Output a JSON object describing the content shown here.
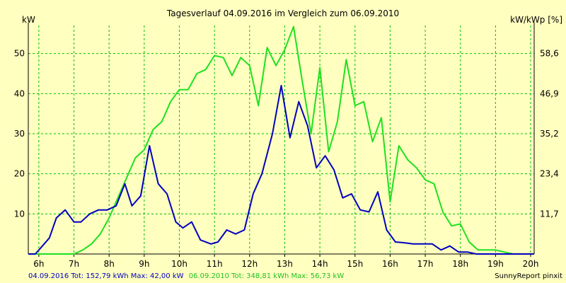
{
  "chart_data": {
    "type": "line",
    "title": "Tagesverlauf 04.09.2016 im Vergleich zum 06.09.2010",
    "ylabel_left": "kW",
    "ylabel_right": "kW/kWp [%]",
    "x_ticks": [
      "6h",
      "7h",
      "8h",
      "9h",
      "10h",
      "11h",
      "12h",
      "13h",
      "14h",
      "15h",
      "16h",
      "17h",
      "18h",
      "19h",
      "20h"
    ],
    "x_range": [
      5.7,
      20.1
    ],
    "y_ticks_left": [
      "10",
      "20",
      "30",
      "40",
      "50"
    ],
    "y_ticks_right": [
      "11,7",
      "23,4",
      "35,2",
      "46,9",
      "58,6"
    ],
    "y_range": [
      0,
      57
    ],
    "grid": true,
    "colors": {
      "background": "#ffffc0",
      "grid": "#00c000",
      "axis": "#000000",
      "series_2016": "#0000c0",
      "series_2010": "#20e020"
    },
    "series": [
      {
        "name": "04.09.2016",
        "x": [
          5.7,
          5.9,
          6.1,
          6.3,
          6.5,
          6.75,
          7.0,
          7.2,
          7.45,
          7.7,
          7.95,
          8.2,
          8.45,
          8.65,
          8.9,
          9.15,
          9.4,
          9.65,
          9.9,
          10.1,
          10.35,
          10.6,
          10.9,
          11.1,
          11.35,
          11.6,
          11.85,
          12.1,
          12.35,
          12.65,
          12.9,
          13.15,
          13.4,
          13.65,
          13.9,
          14.15,
          14.4,
          14.65,
          14.9,
          15.15,
          15.4,
          15.65,
          15.9,
          16.15,
          16.4,
          16.65,
          16.95,
          17.2,
          17.45,
          17.7,
          17.95,
          18.2,
          18.45,
          18.7,
          18.95,
          19.2,
          19.45,
          19.7,
          19.95,
          20.1
        ],
        "values": [
          0,
          0,
          2,
          4,
          9,
          11,
          8,
          8,
          10,
          11,
          11,
          12,
          17.5,
          12,
          14.5,
          27,
          17.5,
          15,
          8,
          6.5,
          8,
          3.5,
          2.5,
          3,
          6,
          5,
          6,
          15,
          20,
          30,
          42,
          29,
          38,
          32,
          21.5,
          24.5,
          21,
          14,
          15,
          11,
          10.5,
          15.5,
          6,
          3,
          2.8,
          2.5,
          2.5,
          2.5,
          1,
          2,
          0.5,
          0.5,
          0,
          0,
          0,
          0,
          0,
          0,
          0,
          0
        ]
      },
      {
        "name": "06.09.2010",
        "x": [
          5.7,
          6.0,
          6.5,
          6.75,
          7.0,
          7.25,
          7.5,
          7.75,
          8.0,
          8.25,
          8.5,
          8.75,
          9.0,
          9.25,
          9.5,
          9.75,
          10.0,
          10.25,
          10.5,
          10.75,
          11.0,
          11.25,
          11.5,
          11.75,
          12.0,
          12.25,
          12.5,
          12.75,
          13.0,
          13.25,
          13.5,
          13.75,
          14.0,
          14.25,
          14.5,
          14.75,
          15.0,
          15.25,
          15.5,
          15.75,
          16.0,
          16.25,
          16.5,
          16.75,
          17.0,
          17.25,
          17.5,
          17.75,
          18.0,
          18.25,
          18.5,
          18.75,
          19.0,
          19.25,
          19.5,
          19.75,
          20.0,
          20.1
        ],
        "values": [
          0,
          0,
          0,
          0,
          0,
          1,
          2.5,
          5,
          9,
          14,
          19,
          24,
          26,
          31,
          33,
          38,
          41,
          41,
          45,
          46,
          49.5,
          49,
          44.5,
          49,
          47,
          37,
          51.5,
          47,
          51,
          56.7,
          43,
          30,
          46.5,
          25.5,
          33,
          48.5,
          37,
          38,
          28,
          34,
          13,
          27,
          23.5,
          21.5,
          18.5,
          17.5,
          10.5,
          7,
          7.5,
          3,
          1,
          1,
          1,
          0.5,
          0,
          0,
          0,
          0
        ]
      }
    ]
  },
  "footer": {
    "left_2016": "04.09.2016 Tot: 152,79 kWh Max: 42,00 kW",
    "left_2010": "06.09.2010 Tot: 348,81 kWh Max: 56,73 kW",
    "right": "SunnyReport pinxit"
  }
}
